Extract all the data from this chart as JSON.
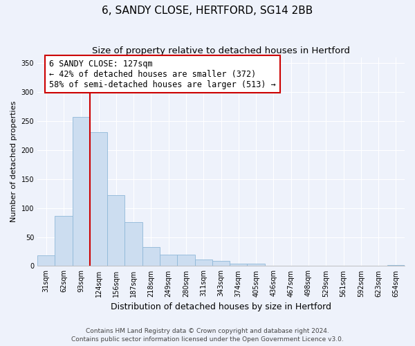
{
  "title": "6, SANDY CLOSE, HERTFORD, SG14 2BB",
  "subtitle": "Size of property relative to detached houses in Hertford",
  "xlabel": "Distribution of detached houses by size in Hertford",
  "ylabel": "Number of detached properties",
  "bar_labels": [
    "31sqm",
    "62sqm",
    "93sqm",
    "124sqm",
    "156sqm",
    "187sqm",
    "218sqm",
    "249sqm",
    "280sqm",
    "311sqm",
    "343sqm",
    "374sqm",
    "405sqm",
    "436sqm",
    "467sqm",
    "498sqm",
    "529sqm",
    "561sqm",
    "592sqm",
    "623sqm",
    "654sqm"
  ],
  "bar_values": [
    19,
    86,
    257,
    231,
    122,
    76,
    33,
    20,
    20,
    11,
    9,
    4,
    4,
    1,
    1,
    0,
    0,
    0,
    0,
    0,
    2
  ],
  "bar_color": "#ccddf0",
  "bar_edge_color": "#8fb8d8",
  "vline_index": 3,
  "vline_color": "#cc0000",
  "annotation_line1": "6 SANDY CLOSE: 127sqm",
  "annotation_line2": "← 42% of detached houses are smaller (372)",
  "annotation_line3": "58% of semi-detached houses are larger (513) →",
  "annotation_box_facecolor": "#ffffff",
  "annotation_box_edgecolor": "#cc0000",
  "ylim": [
    0,
    360
  ],
  "yticks": [
    0,
    50,
    100,
    150,
    200,
    250,
    300,
    350
  ],
  "footer_line1": "Contains HM Land Registry data © Crown copyright and database right 2024.",
  "footer_line2": "Contains public sector information licensed under the Open Government Licence v3.0.",
  "title_fontsize": 11,
  "subtitle_fontsize": 9.5,
  "xlabel_fontsize": 9,
  "ylabel_fontsize": 8,
  "tick_fontsize": 7,
  "footer_fontsize": 6.5,
  "annotation_fontsize": 8.5,
  "background_color": "#eef2fb",
  "grid_color": "#ffffff",
  "spine_color": "#aaaaaa"
}
